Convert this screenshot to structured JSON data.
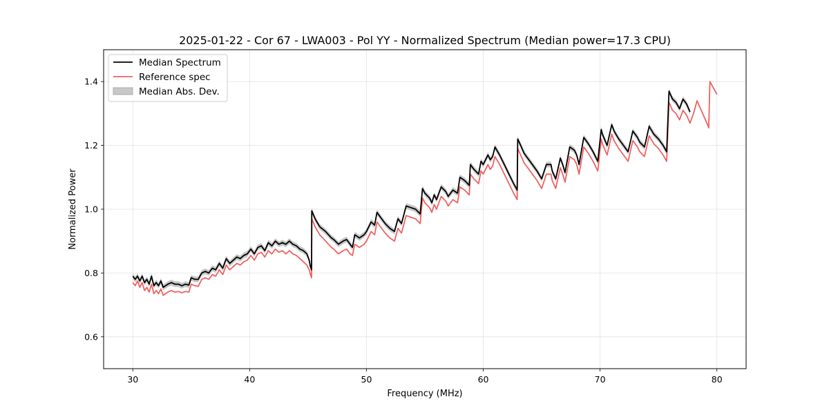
{
  "chart_data": {
    "type": "line",
    "title": "2025-01-22 - Cor 67 - LWA003 - Pol YY - Normalized Spectrum (Median power=17.3 CPU)",
    "xlabel": "Frequency (MHz)",
    "ylabel": "Normalized Power",
    "xlim": [
      27.5,
      82.5
    ],
    "ylim": [
      0.5,
      1.5
    ],
    "xticks": [
      30,
      40,
      50,
      60,
      70,
      80
    ],
    "yticks": [
      0.6,
      0.8,
      1.0,
      1.2,
      1.4
    ],
    "xtick_labels": [
      "30",
      "40",
      "50",
      "60",
      "70",
      "80"
    ],
    "ytick_labels": [
      "0.6",
      "0.8",
      "1.0",
      "1.2",
      "1.4"
    ],
    "grid": true,
    "legend_position": "top-left",
    "colors": {
      "median": "#000000",
      "reference": "#f06060",
      "mad_band": "#bdbdbd"
    },
    "legend": [
      {
        "label": "Median Spectrum",
        "style": "line",
        "color": "#000000"
      },
      {
        "label": "Reference spec",
        "style": "line",
        "color": "#f06060"
      },
      {
        "label": "Median Abs. Dev.",
        "style": "patch",
        "color": "#c8c8c8"
      }
    ],
    "series": [
      {
        "name": "Median Spectrum",
        "color": "#000000",
        "mad": 0.009,
        "x": [
          30.0,
          30.2,
          30.4,
          30.6,
          30.8,
          31.0,
          31.2,
          31.4,
          31.6,
          31.8,
          32.0,
          32.2,
          32.4,
          32.6,
          32.8,
          33.0,
          33.3,
          33.6,
          33.9,
          34.2,
          34.5,
          34.8,
          35.0,
          35.3,
          35.6,
          35.9,
          36.2,
          36.5,
          36.8,
          37.1,
          37.4,
          37.7,
          38.0,
          38.3,
          38.6,
          38.9,
          39.2,
          39.5,
          39.8,
          40.1,
          40.4,
          40.7,
          41.0,
          41.3,
          41.6,
          41.9,
          42.2,
          42.5,
          42.8,
          43.1,
          43.4,
          43.7,
          44.0,
          44.3,
          44.6,
          44.9,
          45.1,
          45.2,
          45.3,
          45.32,
          45.6,
          46.0,
          46.5,
          47.0,
          47.2,
          47.6,
          48.0,
          48.3,
          48.6,
          48.8,
          49.0,
          49.4,
          49.8,
          50.0,
          50.4,
          50.7,
          50.9,
          51.2,
          51.6,
          52.0,
          52.4,
          52.7,
          53.0,
          53.4,
          53.8,
          54.2,
          54.6,
          54.8,
          55.0,
          55.4,
          55.6,
          55.8,
          56.0,
          56.4,
          56.8,
          57.0,
          57.4,
          57.8,
          58.0,
          58.4,
          58.8,
          58.9,
          59.2,
          59.6,
          59.8,
          60.0,
          60.4,
          60.6,
          60.8,
          61.0,
          61.4,
          61.8,
          62.2,
          62.6,
          62.9,
          62.95,
          63.2,
          63.5,
          63.8,
          64.2,
          64.6,
          65.0,
          65.4,
          65.8,
          65.9,
          66.2,
          66.6,
          66.8,
          67.0,
          67.4,
          67.8,
          68.0,
          68.2,
          68.6,
          69.0,
          69.4,
          69.8,
          70.1,
          70.2,
          70.6,
          71.0,
          71.2,
          71.6,
          72.0,
          72.4,
          72.8,
          73.2,
          73.4,
          73.8,
          74.2,
          74.6,
          75.0,
          75.4,
          75.7,
          75.9,
          76.2,
          76.5,
          76.8,
          77.1,
          77.4,
          77.7
        ],
        "values": [
          0.79,
          0.78,
          0.79,
          0.775,
          0.79,
          0.77,
          0.78,
          0.765,
          0.79,
          0.76,
          0.77,
          0.76,
          0.775,
          0.755,
          0.76,
          0.765,
          0.77,
          0.765,
          0.765,
          0.76,
          0.765,
          0.762,
          0.785,
          0.78,
          0.78,
          0.8,
          0.805,
          0.8,
          0.815,
          0.81,
          0.83,
          0.815,
          0.845,
          0.83,
          0.84,
          0.85,
          0.845,
          0.855,
          0.86,
          0.875,
          0.86,
          0.88,
          0.885,
          0.87,
          0.895,
          0.885,
          0.9,
          0.89,
          0.895,
          0.89,
          0.9,
          0.89,
          0.885,
          0.875,
          0.87,
          0.86,
          0.84,
          0.82,
          0.81,
          0.995,
          0.97,
          0.945,
          0.93,
          0.91,
          0.905,
          0.89,
          0.9,
          0.905,
          0.89,
          0.88,
          0.92,
          0.91,
          0.92,
          0.93,
          0.96,
          0.95,
          0.99,
          0.975,
          0.955,
          0.94,
          0.93,
          0.97,
          0.955,
          1.01,
          1.005,
          1.0,
          0.985,
          1.065,
          1.05,
          1.035,
          1.02,
          1.045,
          1.03,
          1.07,
          1.055,
          1.04,
          1.06,
          1.05,
          1.1,
          1.09,
          1.075,
          1.14,
          1.125,
          1.11,
          1.15,
          1.14,
          1.17,
          1.155,
          1.165,
          1.195,
          1.17,
          1.14,
          1.11,
          1.08,
          1.06,
          1.22,
          1.2,
          1.175,
          1.16,
          1.14,
          1.12,
          1.095,
          1.14,
          1.14,
          1.12,
          1.095,
          1.16,
          1.14,
          1.115,
          1.195,
          1.185,
          1.17,
          1.14,
          1.225,
          1.205,
          1.18,
          1.15,
          1.25,
          1.235,
          1.2,
          1.265,
          1.245,
          1.22,
          1.2,
          1.18,
          1.245,
          1.225,
          1.21,
          1.195,
          1.26,
          1.235,
          1.22,
          1.2,
          1.18,
          1.37,
          1.345,
          1.335,
          1.315,
          1.345,
          1.33,
          1.305
        ]
      },
      {
        "name": "Reference spec",
        "color": "#f06060",
        "x": [
          30.0,
          30.2,
          30.4,
          30.6,
          30.8,
          31.0,
          31.2,
          31.4,
          31.6,
          31.8,
          32.0,
          32.2,
          32.4,
          32.6,
          32.8,
          33.0,
          33.3,
          33.6,
          33.9,
          34.2,
          34.5,
          34.8,
          35.0,
          35.3,
          35.6,
          35.9,
          36.2,
          36.5,
          36.8,
          37.1,
          37.4,
          37.7,
          38.0,
          38.3,
          38.6,
          38.9,
          39.2,
          39.5,
          39.8,
          40.1,
          40.4,
          40.7,
          41.0,
          41.3,
          41.6,
          41.9,
          42.2,
          42.5,
          42.8,
          43.1,
          43.4,
          43.7,
          44.0,
          44.3,
          44.6,
          44.9,
          45.1,
          45.2,
          45.3,
          45.32,
          45.6,
          46.0,
          46.5,
          47.0,
          47.2,
          47.6,
          48.0,
          48.3,
          48.6,
          48.8,
          49.0,
          49.4,
          49.8,
          50.0,
          50.4,
          50.7,
          50.9,
          51.2,
          51.6,
          52.0,
          52.4,
          52.7,
          53.0,
          53.4,
          53.8,
          54.2,
          54.6,
          54.8,
          55.0,
          55.4,
          55.6,
          55.8,
          56.0,
          56.4,
          56.8,
          57.0,
          57.4,
          57.8,
          58.0,
          58.4,
          58.8,
          58.9,
          59.2,
          59.6,
          59.8,
          60.0,
          60.4,
          60.6,
          60.8,
          61.0,
          61.4,
          61.8,
          62.2,
          62.6,
          62.9,
          62.95,
          63.2,
          63.5,
          63.8,
          64.2,
          64.6,
          65.0,
          65.4,
          65.8,
          65.9,
          66.2,
          66.6,
          66.8,
          67.0,
          67.4,
          67.8,
          68.0,
          68.2,
          68.6,
          69.0,
          69.4,
          69.8,
          70.1,
          70.2,
          70.6,
          71.0,
          71.2,
          71.6,
          72.0,
          72.4,
          72.8,
          73.2,
          73.4,
          73.8,
          74.2,
          74.6,
          75.0,
          75.4,
          75.7,
          75.9,
          76.2,
          76.5,
          76.8,
          77.1,
          77.4,
          77.7,
          78.0,
          78.3,
          78.6,
          78.9,
          79.2,
          79.3,
          79.4,
          79.7,
          80.0
        ],
        "values": [
          0.77,
          0.76,
          0.775,
          0.755,
          0.77,
          0.745,
          0.755,
          0.74,
          0.765,
          0.735,
          0.745,
          0.735,
          0.75,
          0.73,
          0.735,
          0.74,
          0.745,
          0.74,
          0.742,
          0.738,
          0.742,
          0.74,
          0.765,
          0.76,
          0.758,
          0.78,
          0.785,
          0.78,
          0.795,
          0.79,
          0.81,
          0.795,
          0.825,
          0.81,
          0.82,
          0.83,
          0.825,
          0.835,
          0.84,
          0.855,
          0.84,
          0.86,
          0.865,
          0.85,
          0.87,
          0.86,
          0.875,
          0.865,
          0.87,
          0.86,
          0.87,
          0.86,
          0.855,
          0.845,
          0.835,
          0.825,
          0.81,
          0.795,
          0.785,
          0.97,
          0.945,
          0.92,
          0.9,
          0.88,
          0.875,
          0.86,
          0.87,
          0.875,
          0.86,
          0.855,
          0.89,
          0.88,
          0.89,
          0.9,
          0.93,
          0.92,
          0.96,
          0.945,
          0.925,
          0.91,
          0.9,
          0.94,
          0.925,
          0.98,
          0.975,
          0.97,
          0.955,
          1.035,
          1.02,
          1.005,
          0.99,
          1.015,
          1.0,
          1.04,
          1.025,
          1.01,
          1.03,
          1.02,
          1.07,
          1.06,
          1.045,
          1.11,
          1.095,
          1.08,
          1.12,
          1.11,
          1.14,
          1.125,
          1.135,
          1.165,
          1.14,
          1.11,
          1.08,
          1.05,
          1.03,
          1.19,
          1.17,
          1.145,
          1.13,
          1.11,
          1.09,
          1.065,
          1.11,
          1.11,
          1.09,
          1.065,
          1.13,
          1.11,
          1.085,
          1.165,
          1.155,
          1.14,
          1.11,
          1.195,
          1.175,
          1.15,
          1.12,
          1.22,
          1.205,
          1.17,
          1.235,
          1.215,
          1.19,
          1.17,
          1.15,
          1.215,
          1.195,
          1.18,
          1.165,
          1.23,
          1.205,
          1.19,
          1.17,
          1.15,
          1.335,
          1.31,
          1.3,
          1.28,
          1.31,
          1.295,
          1.27,
          1.3,
          1.34,
          1.315,
          1.29,
          1.265,
          1.255,
          1.4,
          1.38,
          1.36
        ]
      }
    ]
  }
}
